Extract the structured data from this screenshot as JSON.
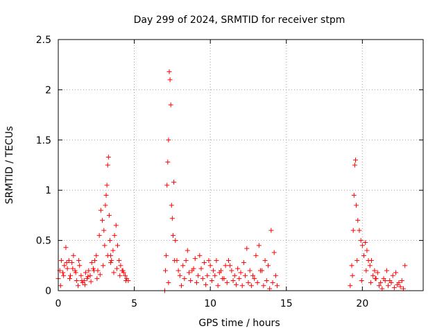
{
  "chart_data": {
    "type": "scatter",
    "title": "Day 299 of 2024, SRMTID for receiver stpm",
    "xlabel": "GPS time / hours",
    "ylabel": "SRMTID / TECUs",
    "xlim": [
      0,
      24
    ],
    "ylim": [
      0,
      2.5
    ],
    "xticks": [
      0,
      5,
      10,
      15,
      20
    ],
    "xtick_labels": [
      "0",
      "5",
      "10",
      "15",
      "20"
    ],
    "yticks": [
      0,
      0.5,
      1,
      1.5,
      2,
      2.5
    ],
    "ytick_labels": [
      "0",
      "0.5",
      "1",
      "1.5",
      "2",
      "2.5"
    ],
    "grid": true,
    "marker": "+",
    "marker_color": "#ff0000",
    "series": [
      {
        "name": "SRMTID",
        "x": [
          0.0,
          0.1,
          0.2,
          0.3,
          0.4,
          0.5,
          0.6,
          0.7,
          0.8,
          0.9,
          1.0,
          1.1,
          1.2,
          1.3,
          1.4,
          1.5,
          1.6,
          1.7,
          1.8,
          1.9,
          2.0,
          2.1,
          2.2,
          2.3,
          2.4,
          2.5,
          2.6,
          2.7,
          2.8,
          2.9,
          3.0,
          3.05,
          3.1,
          3.15,
          3.2,
          3.25,
          3.3,
          3.35,
          3.4,
          3.45,
          3.5,
          3.6,
          3.7,
          3.8,
          3.9,
          4.0,
          4.1,
          4.2,
          4.3,
          4.4,
          4.5,
          4.6,
          0.15,
          0.35,
          0.55,
          0.75,
          0.95,
          1.15,
          1.35,
          1.55,
          1.75,
          1.95,
          2.15,
          2.35,
          2.55,
          2.75,
          2.95,
          3.25,
          3.45,
          3.65,
          3.85,
          4.05,
          4.25,
          4.45,
          7.0,
          7.05,
          7.1,
          7.15,
          7.2,
          7.25,
          7.3,
          7.35,
          7.4,
          7.45,
          7.5,
          7.55,
          7.6,
          7.7,
          7.8,
          7.9,
          8.0,
          8.2,
          8.4,
          8.6,
          8.8,
          9.0,
          9.2,
          9.4,
          9.6,
          9.8,
          10.0,
          10.2,
          10.4,
          10.6,
          10.8,
          11.0,
          11.2,
          11.4,
          11.6,
          11.8,
          12.0,
          12.2,
          12.4,
          12.6,
          12.8,
          13.0,
          13.2,
          13.4,
          13.6,
          13.8,
          14.0,
          14.2,
          14.4,
          7.25,
          7.65,
          8.1,
          8.3,
          8.5,
          8.7,
          8.9,
          9.1,
          9.3,
          9.5,
          9.7,
          9.9,
          10.1,
          10.3,
          10.5,
          10.7,
          10.9,
          11.1,
          11.3,
          11.5,
          11.7,
          11.9,
          12.1,
          12.3,
          12.5,
          12.7,
          12.9,
          13.1,
          13.3,
          13.5,
          13.7,
          13.9,
          14.1,
          14.3,
          19.2,
          19.3,
          19.4,
          19.45,
          19.5,
          19.55,
          19.6,
          19.7,
          19.8,
          19.9,
          20.0,
          20.1,
          20.2,
          20.3,
          20.4,
          20.5,
          20.6,
          20.7,
          20.8,
          20.9,
          21.0,
          21.2,
          21.4,
          21.6,
          21.8,
          22.0,
          22.2,
          22.4,
          22.6,
          22.8,
          19.35,
          19.65,
          19.95,
          20.25,
          20.55,
          20.85,
          21.1,
          21.3,
          21.5,
          21.7,
          21.9,
          22.1,
          22.3,
          22.5,
          22.7
        ],
        "y": [
          0.12,
          0.2,
          0.3,
          0.18,
          0.25,
          0.43,
          0.22,
          0.3,
          0.15,
          0.28,
          0.35,
          0.2,
          0.1,
          0.05,
          0.25,
          0.15,
          0.08,
          0.1,
          0.18,
          0.12,
          0.2,
          0.15,
          0.28,
          0.22,
          0.3,
          0.35,
          0.2,
          0.55,
          0.8,
          0.7,
          0.6,
          0.45,
          0.85,
          0.95,
          1.05,
          1.25,
          1.33,
          0.75,
          0.5,
          0.35,
          0.3,
          0.4,
          0.55,
          0.65,
          0.45,
          0.3,
          0.25,
          0.2,
          0.18,
          0.15,
          0.12,
          0.1,
          0.05,
          0.15,
          0.28,
          0.12,
          0.22,
          0.18,
          0.3,
          0.1,
          0.06,
          0.14,
          0.09,
          0.2,
          0.12,
          0.16,
          0.25,
          0.35,
          0.28,
          0.18,
          0.22,
          0.15,
          0.2,
          0.1,
          0.0,
          0.2,
          0.35,
          1.05,
          1.28,
          1.5,
          2.18,
          2.1,
          1.85,
          0.85,
          0.72,
          0.55,
          1.08,
          0.5,
          0.3,
          0.2,
          0.15,
          0.25,
          0.3,
          0.18,
          0.2,
          0.32,
          0.15,
          0.22,
          0.28,
          0.15,
          0.25,
          0.2,
          0.3,
          0.18,
          0.12,
          0.25,
          0.3,
          0.2,
          0.15,
          0.22,
          0.18,
          0.28,
          0.42,
          0.2,
          0.15,
          0.35,
          0.45,
          0.2,
          0.3,
          0.25,
          0.6,
          0.38,
          0.05,
          0.08,
          0.3,
          0.05,
          0.12,
          0.4,
          0.1,
          0.22,
          0.08,
          0.35,
          0.12,
          0.06,
          0.3,
          0.1,
          0.15,
          0.05,
          0.2,
          0.12,
          0.08,
          0.25,
          0.1,
          0.06,
          0.12,
          0.05,
          0.15,
          0.08,
          0.05,
          0.12,
          0.08,
          0.2,
          0.05,
          0.1,
          0.02,
          0.08,
          0.15,
          0.05,
          0.25,
          0.6,
          0.95,
          1.25,
          1.3,
          0.85,
          0.7,
          0.6,
          0.5,
          0.45,
          0.35,
          0.48,
          0.4,
          0.3,
          0.25,
          0.3,
          0.15,
          0.2,
          0.12,
          0.18,
          0.08,
          0.12,
          0.2,
          0.1,
          0.15,
          0.18,
          0.08,
          0.1,
          0.25,
          0.15,
          0.3,
          0.1,
          0.2,
          0.08,
          0.12,
          0.05,
          0.02,
          0.1,
          0.05,
          0.08,
          0.03,
          0.06,
          0.04,
          0.02
        ]
      }
    ]
  }
}
